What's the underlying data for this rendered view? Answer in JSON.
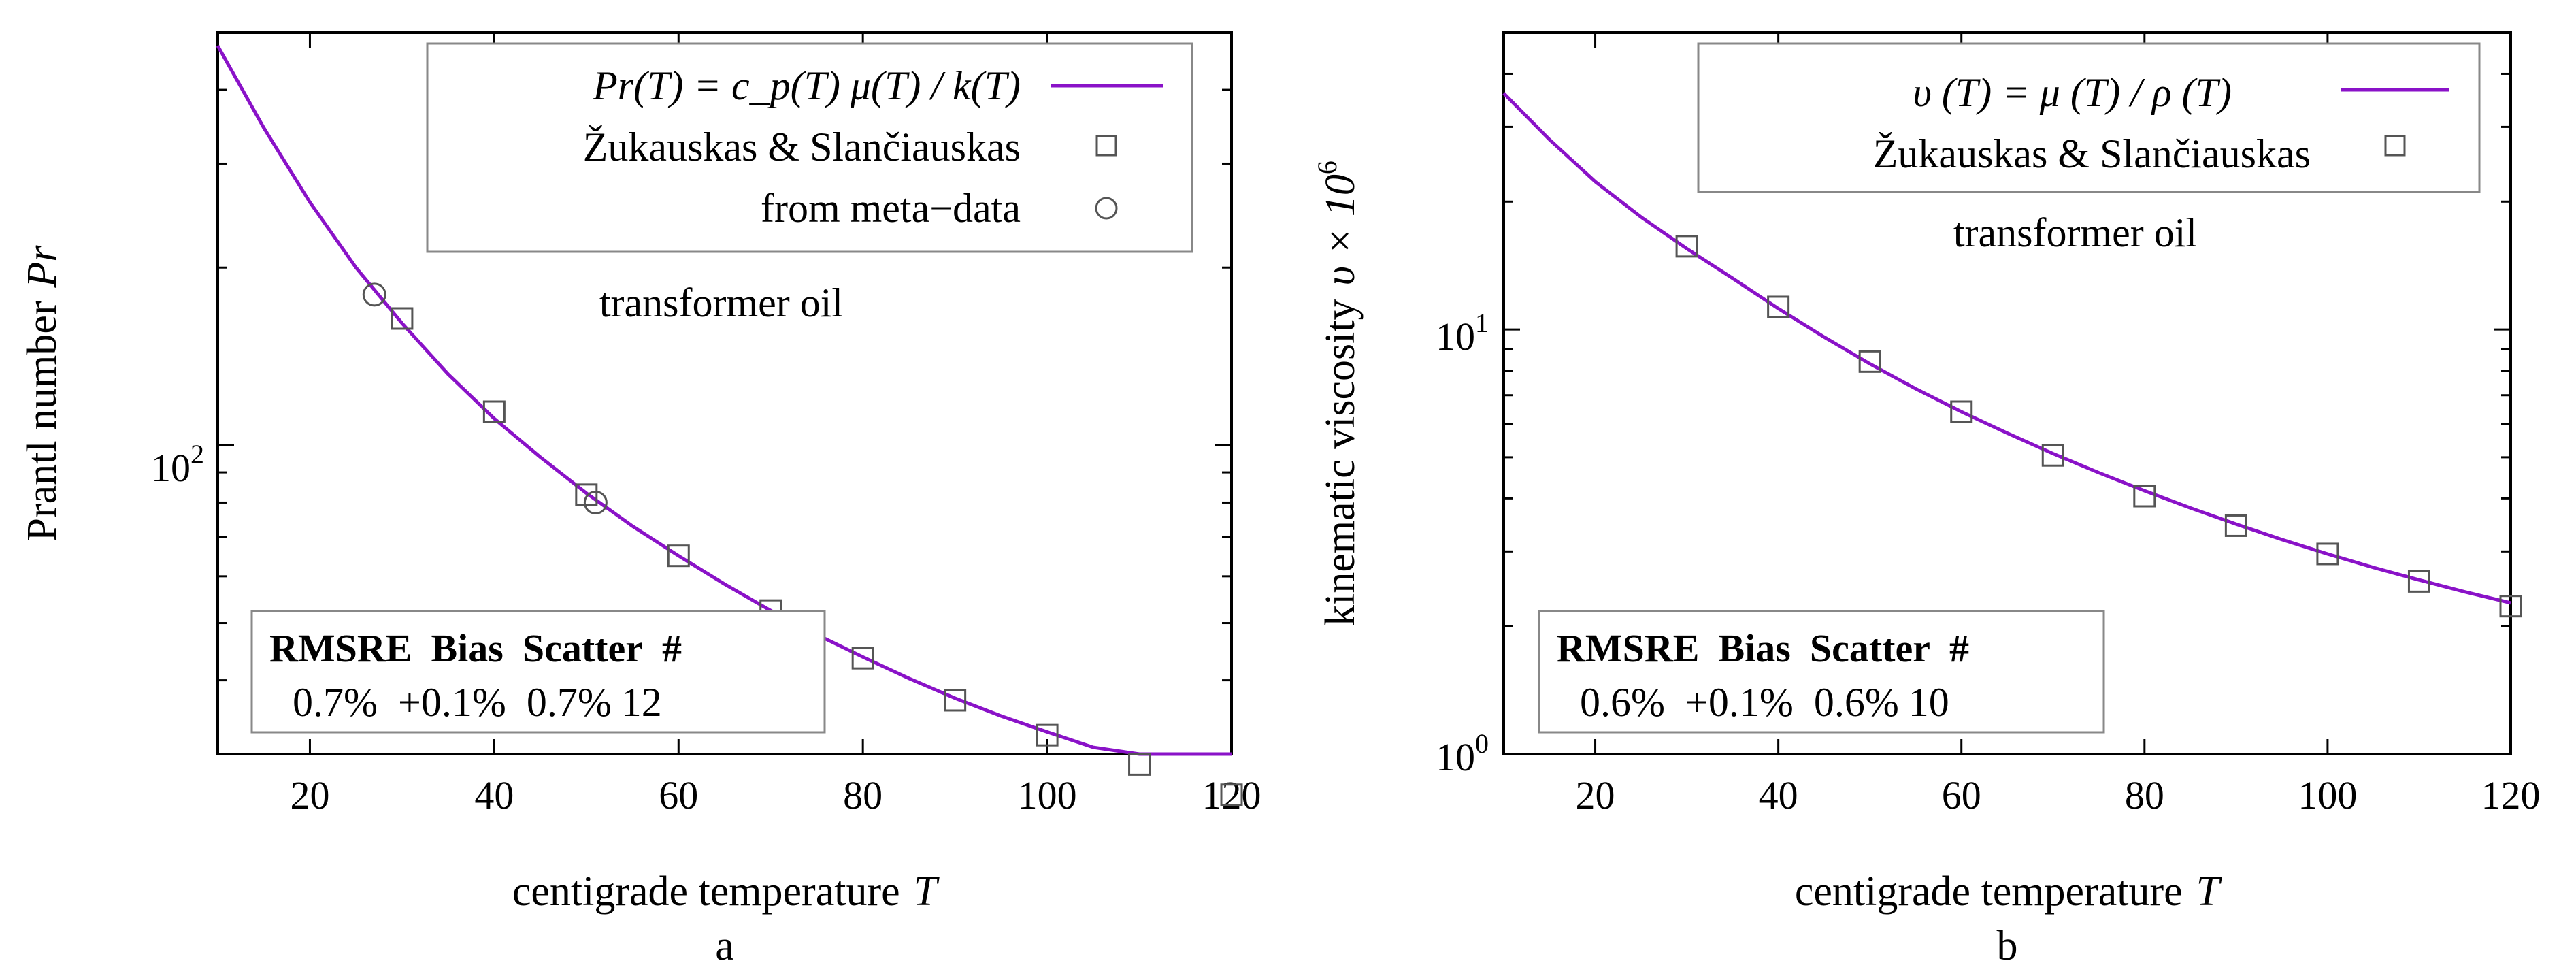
{
  "chart_data": [
    {
      "type": "line",
      "panel_label": "a",
      "xlabel": "centigrade temperature",
      "xlabel_symbol": "T",
      "ylabel": "Prantl number",
      "ylabel_symbol": "Pr",
      "yscale": "log",
      "xlim": [
        10,
        120
      ],
      "ylim": [
        30,
        500
      ],
      "x_ticks": [
        20,
        40,
        60,
        80,
        100,
        120
      ],
      "y_ticks": [
        {
          "value": 100,
          "base": "10",
          "exp": "2"
        }
      ],
      "annotation": "transformer oil",
      "legend": {
        "position": "top-right",
        "entries": [
          {
            "label": "Pr(T) = c_p(T) μ(T) / k(T)",
            "marker": "line"
          },
          {
            "label": "Žukauskas & Slančiauskas",
            "marker": "square"
          },
          {
            "label": "from meta−data",
            "marker": "circle"
          }
        ]
      },
      "curve": {
        "name": "Pr(T) = c_p(T) μ(T) / k(T)",
        "x": [
          10,
          15,
          20,
          25,
          30,
          35,
          40,
          45,
          50,
          55,
          60,
          65,
          70,
          75,
          80,
          85,
          90,
          95,
          100,
          105,
          110,
          115,
          120
        ],
        "y": [
          475,
          345,
          258,
          200,
          161,
          132,
          111,
          95.5,
          83,
          73,
          65,
          58.2,
          52.5,
          47.8,
          43.8,
          40.3,
          37.3,
          34.8,
          32.7,
          30.8,
          29.2,
          27.8,
          26.6
        ]
      },
      "series": [
        {
          "name": "Žukauskas & Slančiauskas",
          "marker": "square",
          "x": [
            30,
            40,
            50,
            60,
            70,
            80,
            90,
            100,
            110,
            120
          ],
          "y": [
            164,
            114,
            82.5,
            65,
            52.5,
            43.6,
            37,
            32.3,
            28.8,
            25.6
          ]
        },
        {
          "name": "from meta−data",
          "marker": "circle",
          "x": [
            27,
            51
          ],
          "y": [
            180,
            80
          ]
        }
      ],
      "stats": {
        "headers": [
          "RMSRE",
          "Bias",
          "Scatter",
          "#"
        ],
        "values": [
          "0.7%",
          "+0.1%",
          "0.7%",
          "12"
        ]
      }
    },
    {
      "type": "line",
      "panel_label": "b",
      "xlabel": "centigrade temperature",
      "xlabel_symbol": "T",
      "ylabel": "kinematic viscosity",
      "ylabel_symbol": "υ × 10",
      "ylabel_exp": "6",
      "yscale": "log",
      "xlim": [
        10,
        120
      ],
      "ylim": [
        1,
        50
      ],
      "x_ticks": [
        20,
        40,
        60,
        80,
        100,
        120
      ],
      "y_ticks": [
        {
          "value": 1,
          "base": "10",
          "exp": "0"
        },
        {
          "value": 10,
          "base": "10",
          "exp": "1"
        }
      ],
      "annotation": "transformer oil",
      "legend": {
        "position": "top-right",
        "entries": [
          {
            "label": "υ (T) = μ (T) / ρ (T)",
            "marker": "line"
          },
          {
            "label": "Žukauskas & Slančiauskas",
            "marker": "square"
          }
        ]
      },
      "curve": {
        "name": "υ (T) = μ (T) / ρ (T)",
        "x": [
          10,
          15,
          20,
          25,
          30,
          35,
          40,
          45,
          50,
          55,
          60,
          65,
          70,
          75,
          80,
          85,
          90,
          95,
          100,
          105,
          110,
          115,
          120
        ],
        "y": [
          36,
          28,
          22.3,
          18.4,
          15.5,
          13.2,
          11.2,
          9.6,
          8.3,
          7.25,
          6.4,
          5.7,
          5.1,
          4.6,
          4.17,
          3.8,
          3.48,
          3.2,
          2.96,
          2.75,
          2.57,
          2.41,
          2.27
        ]
      },
      "series": [
        {
          "name": "Žukauskas & Slančiauskas",
          "marker": "square",
          "x": [
            30,
            40,
            50,
            60,
            70,
            80,
            90,
            100,
            110,
            120
          ],
          "y": [
            15.7,
            11.3,
            8.4,
            6.4,
            5.05,
            4.05,
            3.45,
            2.96,
            2.55,
            2.23
          ]
        }
      ],
      "stats": {
        "headers": [
          "RMSRE",
          "Bias",
          "Scatter",
          "#"
        ],
        "values": [
          "0.6%",
          "+0.1%",
          "0.6%",
          "10"
        ]
      }
    }
  ]
}
